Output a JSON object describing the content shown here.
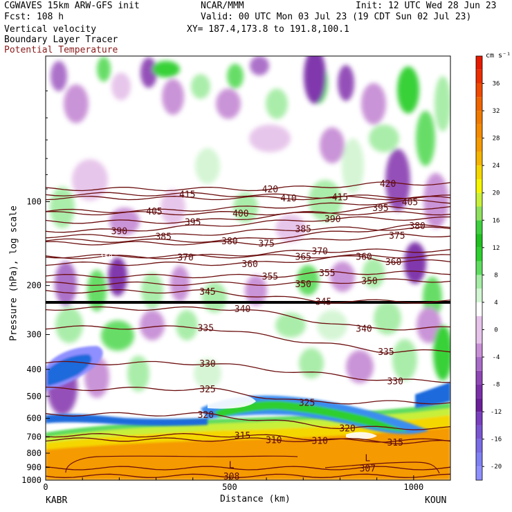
{
  "header": {
    "model": "CGWAVES 15km ARW-GFS init",
    "org": "NCAR/MMM",
    "init": "Init: 12 UTC Wed 28 Jun 23",
    "fcst": "Fcst:  108 h",
    "valid": "Valid: 00 UTC Mon 03 Jul 23 (19 CDT Sun 02 Jul 23)",
    "field1": "Vertical velocity",
    "xy": "XY= 187.4,173.8 to 191.8,100.1",
    "field2": "Boundary Layer Tracer",
    "field3": "Potential Temperature",
    "field3_color": "#8b1a1a"
  },
  "axes": {
    "ylabel": "Pressure (hPa), log scale",
    "xlabel": "Distance (km)",
    "left_station": "KABR",
    "right_station": "KOUN"
  },
  "colorbar": {
    "unit": "cm s⁻¹"
  },
  "chart_data": {
    "type": "heatmap",
    "title": "Vertical velocity / Boundary Layer Tracer / Potential Temperature",
    "xlabel": "Distance (km)",
    "ylabel": "Pressure (hPa), log scale",
    "x_ticks": [
      0,
      500,
      1000
    ],
    "xlim": [
      0,
      1100
    ],
    "y_ticks": [
      100,
      200,
      300,
      400,
      500,
      600,
      700,
      800,
      900,
      1000
    ],
    "ylim": [
      1000,
      30
    ],
    "y_scale": "log",
    "colorbar": {
      "unit": "cm s⁻¹",
      "ticks": [
        -20,
        -16,
        -12,
        -8,
        -4,
        0,
        4,
        8,
        12,
        16,
        20,
        24,
        28,
        32,
        36
      ],
      "levels": [
        -22,
        -20,
        -18,
        -16,
        -14,
        -12,
        -10,
        -8,
        -6,
        -4,
        -2,
        2,
        4,
        6,
        8,
        10,
        12,
        14,
        16,
        18,
        20,
        22,
        24,
        26,
        28,
        30,
        32,
        34,
        36,
        38,
        40
      ],
      "colors": [
        "#8f8fff",
        "#8080f5",
        "#7a6be6",
        "#7a55d2",
        "#7a3fbf",
        "#6b1f9a",
        "#7a2fa8",
        "#8f47b5",
        "#a86bc7",
        "#c88fd6",
        "#e6c3ea",
        "#ffffff",
        "#d3f5d3",
        "#a6eca6",
        "#5fdc5f",
        "#2ecf2e",
        "#1fc01f",
        "#3fcf3f",
        "#8fe05f",
        "#c8f03a",
        "#f5f500",
        "#f5d700",
        "#f5b400",
        "#f59a00",
        "#f58a00",
        "#f07a00",
        "#f06400",
        "#f04a00",
        "#ec2d00",
        "#e61a00"
      ]
    },
    "theta_labels": [
      {
        "x": 385,
        "p": 94,
        "v": "415"
      },
      {
        "x": 610,
        "p": 90,
        "v": "420"
      },
      {
        "x": 660,
        "p": 97,
        "v": "410"
      },
      {
        "x": 800,
        "p": 96,
        "v": "415"
      },
      {
        "x": 930,
        "p": 86,
        "v": "420"
      },
      {
        "x": 295,
        "p": 108,
        "v": "405"
      },
      {
        "x": 530,
        "p": 110,
        "v": "400"
      },
      {
        "x": 990,
        "p": 100,
        "v": "405"
      },
      {
        "x": 400,
        "p": 118,
        "v": "395"
      },
      {
        "x": 910,
        "p": 105,
        "v": "395"
      },
      {
        "x": 780,
        "p": 115,
        "v": "390"
      },
      {
        "x": 200,
        "p": 127,
        "v": "390"
      },
      {
        "x": 320,
        "p": 133,
        "v": "385"
      },
      {
        "x": 700,
        "p": 125,
        "v": "385"
      },
      {
        "x": 1010,
        "p": 122,
        "v": "380"
      },
      {
        "x": 500,
        "p": 138,
        "v": "380"
      },
      {
        "x": 600,
        "p": 141,
        "v": "375"
      },
      {
        "x": 955,
        "p": 132,
        "v": "375"
      },
      {
        "x": 380,
        "p": 158,
        "v": "370"
      },
      {
        "x": 745,
        "p": 150,
        "v": "370"
      },
      {
        "x": 700,
        "p": 157,
        "v": "365"
      },
      {
        "x": 865,
        "p": 157,
        "v": "360"
      },
      {
        "x": 555,
        "p": 167,
        "v": "360"
      },
      {
        "x": 945,
        "p": 164,
        "v": "360"
      },
      {
        "x": 610,
        "p": 185,
        "v": "355"
      },
      {
        "x": 765,
        "p": 180,
        "v": "355"
      },
      {
        "x": 700,
        "p": 197,
        "v": "350"
      },
      {
        "x": 880,
        "p": 192,
        "v": "350"
      },
      {
        "x": 440,
        "p": 210,
        "v": "345"
      },
      {
        "x": 755,
        "p": 228,
        "v": "345"
      },
      {
        "x": 535,
        "p": 242,
        "v": "340"
      },
      {
        "x": 865,
        "p": 285,
        "v": "340"
      },
      {
        "x": 435,
        "p": 283,
        "v": "335"
      },
      {
        "x": 925,
        "p": 345,
        "v": "335"
      },
      {
        "x": 440,
        "p": 380,
        "v": "330"
      },
      {
        "x": 950,
        "p": 440,
        "v": "330"
      },
      {
        "x": 440,
        "p": 470,
        "v": "325"
      },
      {
        "x": 710,
        "p": 525,
        "v": "325"
      },
      {
        "x": 435,
        "p": 580,
        "v": "320"
      },
      {
        "x": 820,
        "p": 650,
        "v": "320"
      },
      {
        "x": 535,
        "p": 690,
        "v": "315"
      },
      {
        "x": 950,
        "p": 730,
        "v": "315"
      },
      {
        "x": 620,
        "p": 715,
        "v": "310"
      },
      {
        "x": 745,
        "p": 720,
        "v": "310"
      },
      {
        "x": 505,
        "p": 965,
        "v": "308"
      },
      {
        "x": 875,
        "p": 905,
        "v": "307"
      }
    ],
    "low_markers": [
      {
        "x": 505,
        "p": 880,
        "v": "L"
      },
      {
        "x": 875,
        "p": 830,
        "v": "L"
      }
    ],
    "tracer_label": {
      "x": 165,
      "p": 157,
      "v": "158"
    }
  }
}
